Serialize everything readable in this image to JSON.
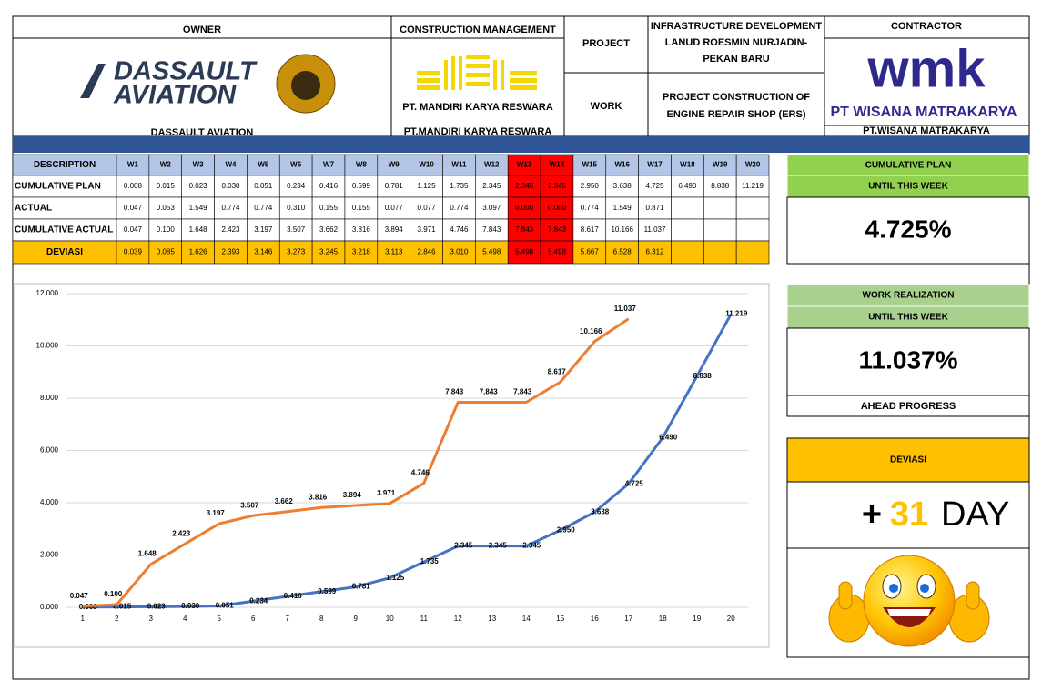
{
  "header": {
    "owner_label": "OWNER",
    "owner_logo": [
      "DASSAULT",
      "AVIATION"
    ],
    "owner_name": "DASSAULT AVIATION",
    "cm_label": "CONSTRUCTION MANAGEMENT",
    "cm_logo": "PT. MANDIRI KARYA RESWARA",
    "cm_name": "PT.MANDIRI KARYA RESWARA",
    "project_label": "PROJECT",
    "project": [
      "INFRASTRUCTURE DEVELOPMENT",
      "LANUD ROESMIN NURJADIN-",
      "PEKAN BARU"
    ],
    "work_label": "WORK",
    "work": [
      "PROJECT CONSTRUCTION OF",
      "ENGINE REPAIR SHOP (ERS)"
    ],
    "contractor_label": "CONTRACTOR",
    "contractor_logo": "wmk",
    "contractor_logo_name": "PT WISANA MATRAKARYA",
    "contractor_name": "PT.WISANA MATRAKARYA"
  },
  "table": {
    "columns": [
      "DESCRIPTION",
      "W1",
      "W2",
      "W3",
      "W4",
      "W5",
      "W6",
      "W7",
      "W8",
      "W9",
      "W10",
      "W11",
      "W12",
      "W13",
      "W14",
      "W15",
      "W16",
      "W17",
      "W18",
      "W19",
      "W20"
    ],
    "highlight": [
      13,
      14
    ],
    "rows": [
      {
        "label": "CUMULATIVE PLAN",
        "cells": [
          "0.008",
          "0.015",
          "0.023",
          "0.030",
          "0.051",
          "0.234",
          "0.416",
          "0.599",
          "0.781",
          "1.125",
          "1.735",
          "2.345",
          "2.345",
          "2.345",
          "2.950",
          "3.638",
          "4.725",
          "6.490",
          "8.838",
          "11.219"
        ]
      },
      {
        "label": "ACTUAL",
        "cells": [
          "0.047",
          "0.053",
          "1.549",
          "0.774",
          "0.774",
          "0.310",
          "0.155",
          "0.155",
          "0.077",
          "0.077",
          "0.774",
          "3.097",
          "0.000",
          "0.000",
          "0.774",
          "1.549",
          "0.871"
        ]
      },
      {
        "label": "CUMULATIVE ACTUAL",
        "cells": [
          "0.047",
          "0.100",
          "1.648",
          "2.423",
          "3.197",
          "3.507",
          "3.662",
          "3.816",
          "3.894",
          "3.971",
          "4.746",
          "7.843",
          "7.843",
          "7.843",
          "8.617",
          "10.166",
          "11.037"
        ]
      },
      {
        "label": "DEVIASI",
        "cells": [
          "0.039",
          "0.085",
          "1.626",
          "2.393",
          "3.146",
          "3.273",
          "3.245",
          "3.218",
          "3.113",
          "2.846",
          "3.010",
          "5.498",
          "5.498",
          "5.498",
          "5.667",
          "6.528",
          "6.312"
        ]
      }
    ]
  },
  "summary": {
    "plan_title": "CUMULATIVE PLAN",
    "plan_sub": "UNTIL THIS WEEK",
    "plan_value": "4.725%",
    "real_title": "WORK REALIZATION",
    "real_sub": "UNTIL THIS WEEK",
    "real_value": "11.037%",
    "real_note": "AHEAD PROGRESS",
    "dev_title": "DEVIASI",
    "dev_sign": "+",
    "dev_days": "31",
    "dev_unit": "DAY"
  },
  "chart_data": {
    "type": "line",
    "categories": [
      1,
      2,
      3,
      4,
      5,
      6,
      7,
      8,
      9,
      10,
      11,
      12,
      13,
      14,
      15,
      16,
      17,
      18,
      19,
      20
    ],
    "ylim": [
      0,
      12
    ],
    "yticks": [
      {
        "value": 0,
        "label": "0.000"
      },
      {
        "value": 2,
        "label": "2.000"
      },
      {
        "value": 4,
        "label": "4.000"
      },
      {
        "value": 6,
        "label": "6.000"
      },
      {
        "value": 8,
        "label": "8.000"
      },
      {
        "value": 10,
        "label": "10.000"
      },
      {
        "value": 12,
        "label": "12.000"
      }
    ],
    "grid": true,
    "series": [
      {
        "name": "Cumulative Plan",
        "color": "#4472c4",
        "values": [
          0.008,
          0.015,
          0.023,
          0.03,
          0.051,
          0.234,
          0.416,
          0.599,
          0.781,
          1.125,
          1.735,
          2.345,
          2.345,
          2.345,
          2.95,
          3.638,
          4.725,
          6.49,
          8.838,
          11.219
        ],
        "value_labels": [
          "0.008",
          "0.015",
          "0.023",
          "0.030",
          "0.051",
          "0.234",
          "0.416",
          "0.599",
          "0.781",
          "1.125",
          "1.735",
          "2.345",
          "2.345",
          "2.345",
          "2.950",
          "3.638",
          "4.725",
          "6.490",
          "8.838",
          "11.219"
        ]
      },
      {
        "name": "Cumulative Actual",
        "color": "#ed7d31",
        "values": [
          0.047,
          0.1,
          1.648,
          2.423,
          3.197,
          3.507,
          3.662,
          3.816,
          3.894,
          3.971,
          4.746,
          7.843,
          7.843,
          7.843,
          8.617,
          10.166,
          11.037,
          null,
          null,
          null
        ],
        "value_labels": [
          "0.047",
          "0.100",
          "1.648",
          "2.423",
          "3.197",
          "3.507",
          "3.662",
          "3.816",
          "3.894",
          "3.971",
          "4.746",
          "7.843",
          "7.843",
          "7.843",
          "8.617",
          "10.166",
          "11.037",
          null,
          null,
          null
        ]
      }
    ]
  }
}
